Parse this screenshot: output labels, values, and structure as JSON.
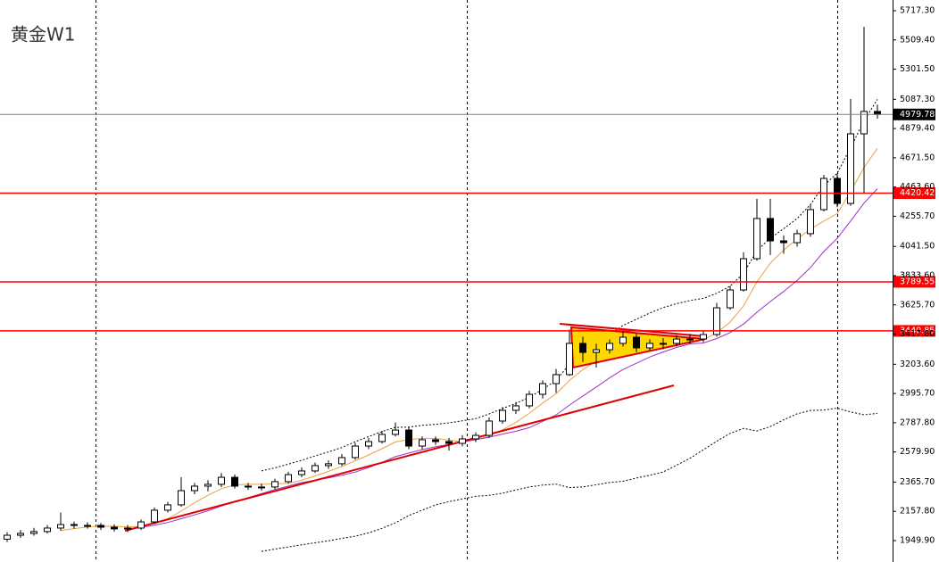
{
  "chart_data": {
    "type": "candlestick",
    "title": "黄金W1",
    "open": [
      1960,
      1988,
      2001,
      2014,
      2039,
      2064,
      2058,
      2058,
      2045,
      2033,
      2039,
      2083,
      2166,
      2204,
      2305,
      2337,
      2350,
      2400,
      2337,
      2331,
      2331,
      2369,
      2419,
      2445,
      2483,
      2496,
      2540,
      2622,
      2654,
      2705,
      2736,
      2622,
      2667,
      2654,
      2641,
      2673,
      2698,
      2800,
      2876,
      2908,
      2990,
      3066,
      3130,
      3352,
      3288,
      3307,
      3352,
      3396,
      3320,
      3352,
      3352,
      3383,
      3383,
      3415,
      3605,
      3732,
      3954,
      4240,
      4081,
      4068,
      4132,
      4303,
      4525,
      4347,
      4842,
      5001
    ],
    "high": [
      2010,
      2025,
      2040,
      2060,
      2150,
      2085,
      2080,
      2075,
      2065,
      2060,
      2100,
      2185,
      2225,
      2400,
      2360,
      2380,
      2430,
      2420,
      2360,
      2355,
      2390,
      2440,
      2470,
      2505,
      2520,
      2565,
      2645,
      2680,
      2730,
      2790,
      2760,
      2690,
      2690,
      2680,
      2700,
      2720,
      2825,
      2900,
      2935,
      3015,
      3090,
      3170,
      3450,
      3400,
      3350,
      3380,
      3440,
      3420,
      3380,
      3390,
      3410,
      3420,
      3440,
      3640,
      3760,
      4000,
      4380,
      4380,
      4120,
      4160,
      4340,
      4550,
      4560,
      5090,
      5603,
      5050
    ],
    "low": [
      1940,
      1970,
      1985,
      2000,
      2020,
      2035,
      2035,
      2025,
      2015,
      2010,
      2025,
      2070,
      2150,
      2190,
      2280,
      2300,
      2330,
      2320,
      2310,
      2305,
      2315,
      2355,
      2400,
      2430,
      2460,
      2480,
      2525,
      2600,
      2640,
      2690,
      2600,
      2600,
      2630,
      2590,
      2620,
      2650,
      2680,
      2780,
      2850,
      2890,
      2960,
      3000,
      3120,
      3220,
      3180,
      3280,
      3330,
      3290,
      3300,
      3310,
      3330,
      3350,
      3360,
      3400,
      3590,
      3720,
      3940,
      3980,
      3990,
      4040,
      4110,
      4290,
      4320,
      4330,
      4420,
      4950
    ],
    "close": [
      1988,
      2001,
      2014,
      2039,
      2064,
      2058,
      2058,
      2045,
      2033,
      2039,
      2083,
      2166,
      2204,
      2305,
      2337,
      2350,
      2400,
      2337,
      2331,
      2331,
      2369,
      2419,
      2445,
      2483,
      2496,
      2540,
      2622,
      2654,
      2705,
      2736,
      2622,
      2667,
      2654,
      2641,
      2673,
      2698,
      2800,
      2876,
      2908,
      2990,
      3066,
      3130,
      3352,
      3288,
      3307,
      3352,
      3396,
      3320,
      3352,
      3352,
      3383,
      3383,
      3415,
      3605,
      3732,
      3954,
      4240,
      4081,
      4068,
      4132,
      4303,
      4525,
      4347,
      4842,
      5001,
      4979.78
    ],
    "ylim": [
      1797.7,
      5793.4
    ],
    "yticks": [
      {
        "value": 1949.9,
        "label": "1949.90"
      },
      {
        "value": 2157.8,
        "label": "2157.80"
      },
      {
        "value": 2365.7,
        "label": "2365.70"
      },
      {
        "value": 2579.9,
        "label": "2579.90"
      },
      {
        "value": 2787.8,
        "label": "2787.80"
      },
      {
        "value": 2995.7,
        "label": "2995.70"
      },
      {
        "value": 3203.6,
        "label": "3203.60"
      },
      {
        "value": 3417.8,
        "label": "3417.80"
      },
      {
        "value": 3625.7,
        "label": "3625.70"
      },
      {
        "value": 3833.6,
        "label": "3833.60"
      },
      {
        "value": 4041.5,
        "label": "4041.50"
      },
      {
        "value": 4255.7,
        "label": "4255.70"
      },
      {
        "value": 4463.6,
        "label": "4463.60"
      },
      {
        "value": 4671.5,
        "label": "4671.50"
      },
      {
        "value": 4879.4,
        "label": "4879.40"
      },
      {
        "value": 5087.3,
        "label": "5087.30"
      },
      {
        "value": 5301.5,
        "label": "5301.50"
      },
      {
        "value": 5509.4,
        "label": "5509.40"
      },
      {
        "value": 5717.3,
        "label": "5717.30"
      }
    ],
    "price_lines": [
      {
        "value": 4979.78,
        "color": "#808080"
      },
      {
        "value": 4420.42,
        "color": "#ff0000"
      },
      {
        "value": 3789.55,
        "color": "#ff0000"
      },
      {
        "value": 3440.85,
        "color": "#ff0000"
      }
    ]
  }
}
